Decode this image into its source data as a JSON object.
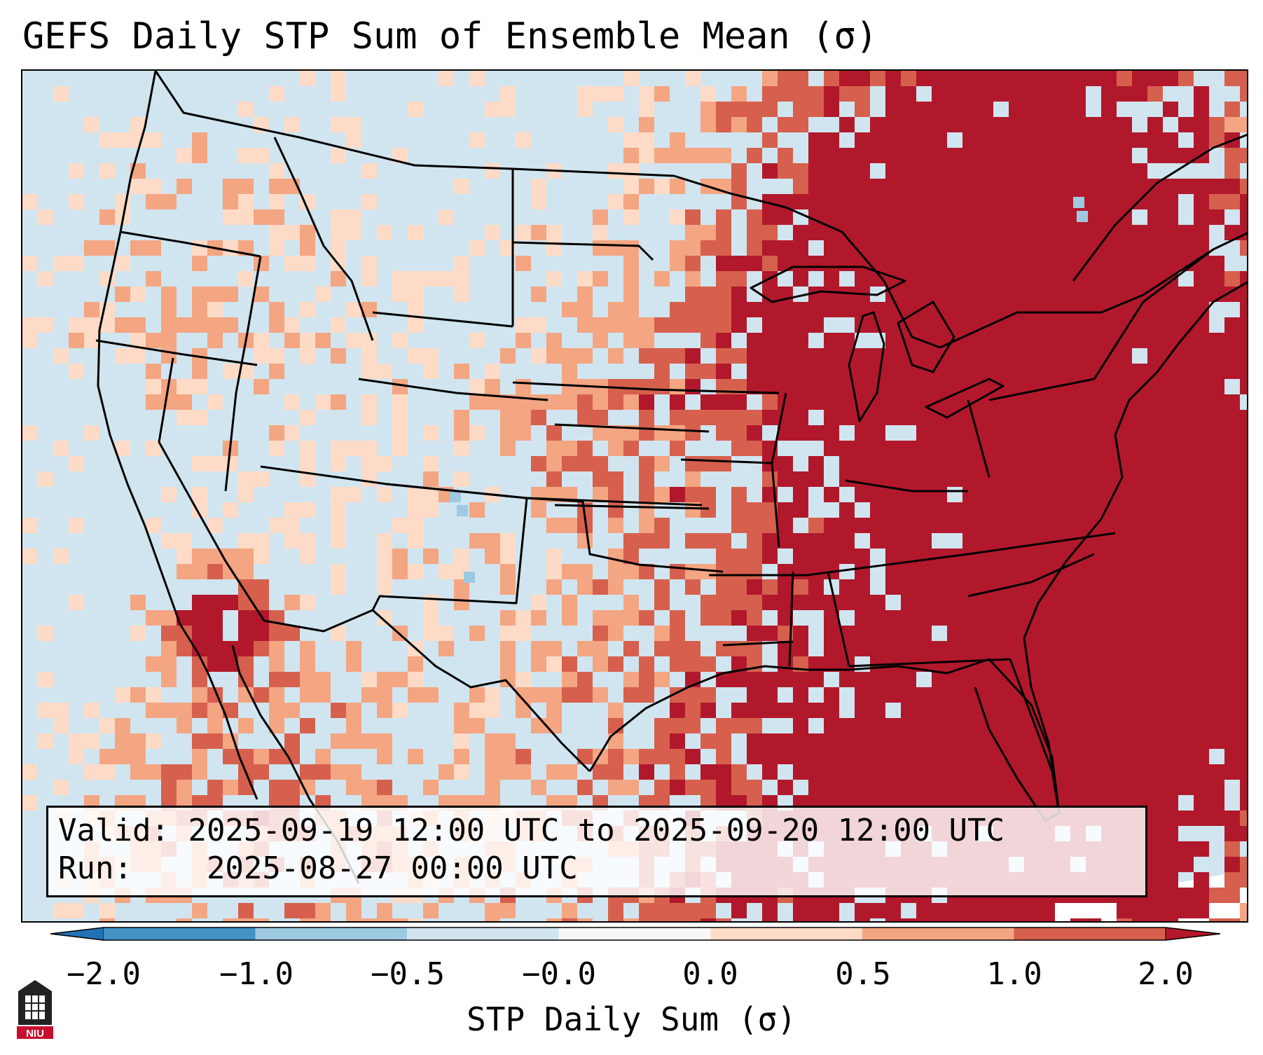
{
  "title": "GEFS Daily STP Sum of Ensemble Mean (σ)",
  "info": {
    "valid_label": "Valid:",
    "valid_value": "2025-09-19 12:00 UTC to 2025-09-20 12:00 UTC",
    "run_label": "Run:",
    "run_value": "2025-08-27 00:00 UTC"
  },
  "colorbar": {
    "label": "STP Daily Sum (σ)",
    "ticks": [
      "−2.0",
      "−1.0",
      "−0.5",
      "−0.0",
      "0.0",
      "0.5",
      "1.0",
      "2.0"
    ],
    "colors": [
      "#4292c6",
      "#9ecae1",
      "#d1e5f0",
      "#f7f7f7",
      "#fddbc7",
      "#f4a582",
      "#d6604d",
      "#b2182b"
    ],
    "extend": "both"
  },
  "map": {
    "background_color": "#d1e5f0",
    "region": "Continental United States"
  },
  "logo": {
    "text": "NIU",
    "color": "#c8102e"
  }
}
